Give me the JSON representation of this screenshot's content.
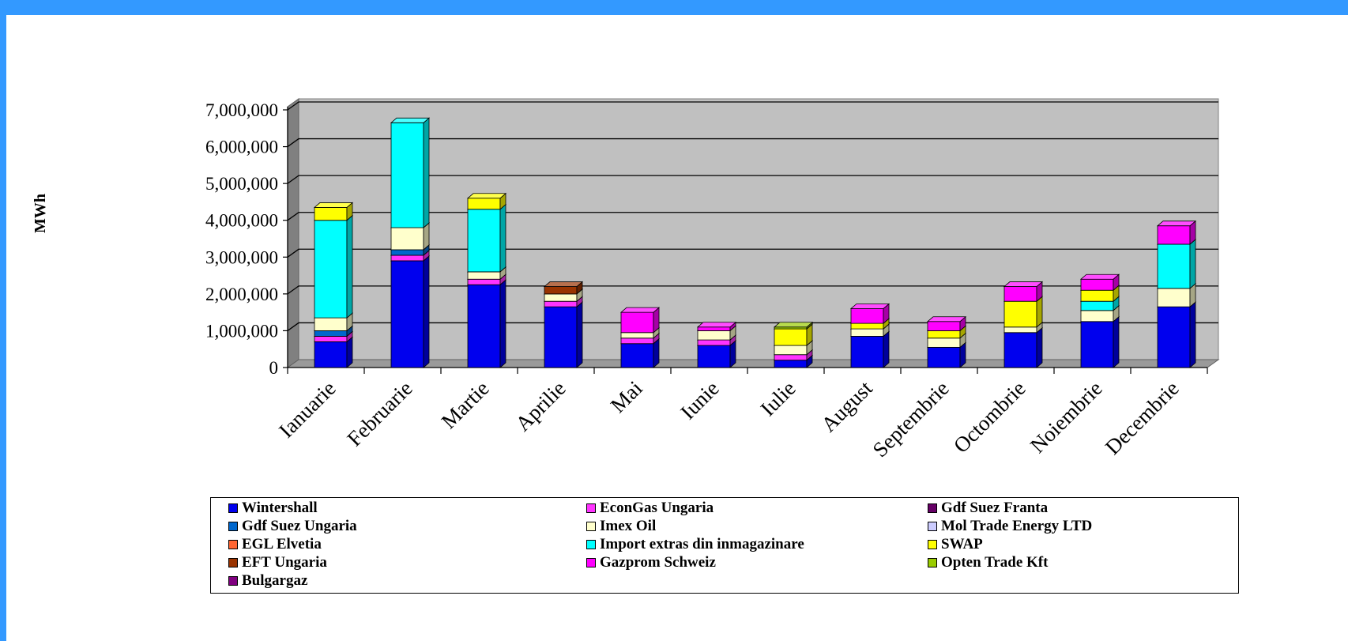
{
  "chart_data": {
    "type": "bar",
    "stacked": true,
    "three_d": true,
    "ylabel": "MWh",
    "ylim": [
      0,
      7000000
    ],
    "yticks": [
      0,
      1000000,
      2000000,
      3000000,
      4000000,
      5000000,
      6000000,
      7000000
    ],
    "ytick_labels": [
      "0",
      "1,000,000",
      "2,000,000",
      "3,000,000",
      "4,000,000",
      "5,000,000",
      "6,000,000",
      "7,000,000"
    ],
    "grid": true,
    "legend_position": "bottom",
    "categories": [
      "Ianuarie",
      "Februarie",
      "Martie",
      "Aprilie",
      "Mai",
      "Iunie",
      "Iulie",
      "August",
      "Septembrie",
      "Octombrie",
      "Noiembrie",
      "Decembrie"
    ],
    "series": [
      {
        "name": "Wintershall",
        "color": "#0000ee",
        "values": [
          700000,
          2900000,
          2250000,
          1650000,
          650000,
          600000,
          200000,
          850000,
          550000,
          950000,
          1250000,
          1650000
        ]
      },
      {
        "name": "EconGas Ungaria",
        "color": "#ff33ff",
        "values": [
          150000,
          150000,
          150000,
          150000,
          150000,
          150000,
          150000,
          0,
          0,
          0,
          0,
          0
        ]
      },
      {
        "name": "Gdf Suez Franta",
        "color": "#660066",
        "values": [
          0,
          0,
          0,
          0,
          0,
          0,
          0,
          0,
          0,
          0,
          0,
          0
        ]
      },
      {
        "name": "Gdf Suez Ungaria",
        "color": "#0066cc",
        "values": [
          150000,
          150000,
          0,
          0,
          0,
          0,
          0,
          0,
          0,
          0,
          0,
          0
        ]
      },
      {
        "name": "Imex Oil",
        "color": "#ffffcc",
        "values": [
          350000,
          600000,
          200000,
          200000,
          150000,
          250000,
          250000,
          200000,
          250000,
          150000,
          300000,
          500000
        ]
      },
      {
        "name": "Mol Trade Energy LTD",
        "color": "#ccccff",
        "values": [
          0,
          0,
          0,
          0,
          0,
          0,
          0,
          0,
          0,
          0,
          0,
          0
        ]
      },
      {
        "name": "EGL Elvetia",
        "color": "#ff6633",
        "values": [
          0,
          0,
          0,
          0,
          0,
          0,
          0,
          0,
          0,
          0,
          0,
          0
        ]
      },
      {
        "name": "Import extras din inmagazinare",
        "color": "#00ffff",
        "values": [
          2650000,
          2850000,
          1700000,
          0,
          0,
          0,
          0,
          0,
          0,
          0,
          250000,
          1200000
        ]
      },
      {
        "name": "SWAP",
        "color": "#ffff00",
        "values": [
          350000,
          0,
          300000,
          0,
          0,
          0,
          450000,
          150000,
          200000,
          700000,
          300000,
          0
        ]
      },
      {
        "name": "EFT Ungaria",
        "color": "#993300",
        "values": [
          0,
          0,
          0,
          200000,
          0,
          0,
          0,
          0,
          0,
          0,
          0,
          0
        ]
      },
      {
        "name": "Gazprom Schweiz",
        "color": "#ff00ff",
        "values": [
          0,
          0,
          0,
          0,
          550000,
          100000,
          0,
          400000,
          250000,
          400000,
          300000,
          500000
        ]
      },
      {
        "name": "Opten Trade Kft",
        "color": "#99cc00",
        "values": [
          0,
          0,
          0,
          0,
          0,
          0,
          50000,
          0,
          0,
          0,
          0,
          0
        ]
      },
      {
        "name": "Bulgargaz",
        "color": "#800080",
        "values": [
          0,
          0,
          0,
          0,
          0,
          0,
          0,
          0,
          0,
          0,
          0,
          0
        ]
      }
    ]
  }
}
